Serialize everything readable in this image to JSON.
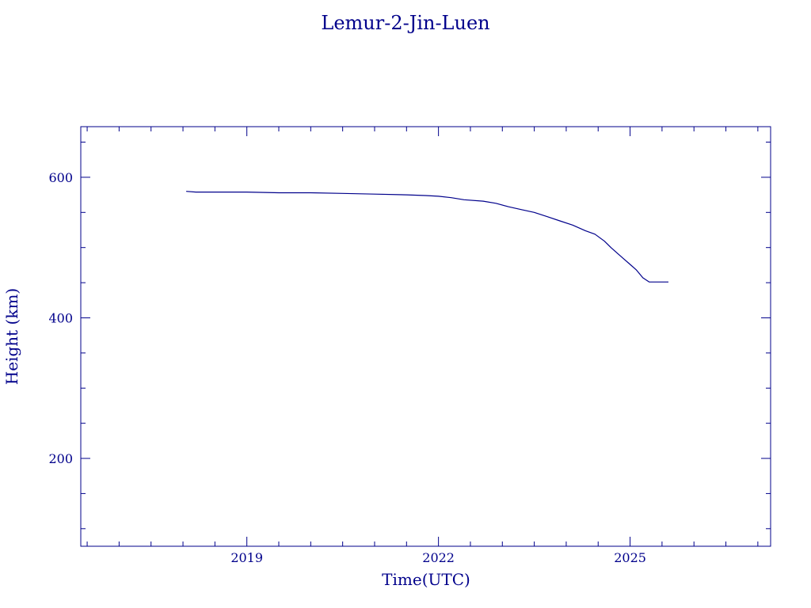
{
  "chart_data": {
    "type": "line",
    "title": "Lemur-2-Jin-Luen",
    "xlabel": "Time(UTC)",
    "ylabel": "Height (km)",
    "xlim": [
      2016.4,
      2027.2
    ],
    "ylim": [
      75,
      672
    ],
    "x_ticks": [
      2019,
      2022,
      2025
    ],
    "x_tick_labels": [
      "2019",
      "2022",
      "2025"
    ],
    "y_ticks": [
      200,
      400,
      600
    ],
    "y_tick_labels": [
      "200",
      "400",
      "600"
    ],
    "grid": false,
    "color": "#00008b",
    "series": [
      {
        "x": [
          2018.05,
          2018.2,
          2018.6,
          2019.0,
          2019.5,
          2020.0,
          2020.5,
          2021.0,
          2021.5,
          2021.8,
          2022.0,
          2022.2,
          2022.4,
          2022.7,
          2022.9,
          2023.1,
          2023.3,
          2023.5,
          2023.7,
          2023.9,
          2024.1,
          2024.3,
          2024.45,
          2024.6,
          2024.7,
          2024.8,
          2024.9,
          2025.0,
          2025.1,
          2025.2,
          2025.3,
          2025.4,
          2025.5,
          2025.6
        ],
        "y": [
          580,
          579,
          579,
          579,
          578,
          578,
          577,
          576,
          575,
          574,
          573,
          571,
          568,
          566,
          563,
          558,
          554,
          550,
          544,
          538,
          532,
          524,
          519,
          509,
          500,
          492,
          484,
          476,
          468,
          457,
          451,
          451,
          451,
          451
        ]
      }
    ]
  }
}
